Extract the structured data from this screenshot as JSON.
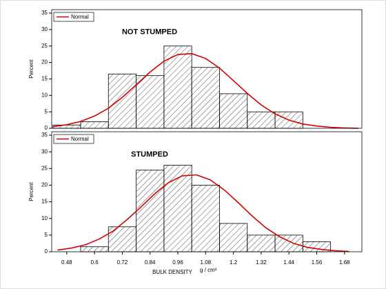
{
  "chart_data": [
    {
      "type": "histogram",
      "title": "NOT STUMPED",
      "ylabel": "Percent",
      "bins": [
        0.42,
        0.54,
        0.66,
        0.78,
        0.9,
        1.02,
        1.14,
        1.26,
        1.38,
        1.5
      ],
      "counts": [
        1,
        2,
        16.5,
        16,
        25,
        18.5,
        10.5,
        5,
        5
      ],
      "bar_color": "#000000",
      "xlim": [
        0.415,
        1.755
      ],
      "ylim": [
        0,
        35
      ],
      "yticks": [
        0,
        5,
        10,
        15,
        20,
        25,
        30,
        35
      ],
      "legend": "upper left",
      "series": [
        {
          "name": "Normal",
          "color": "#d40000",
          "x": [
            0.42,
            0.48,
            0.54,
            0.6,
            0.66,
            0.72,
            0.78,
            0.84,
            0.9,
            0.96,
            1.02,
            1.08,
            1.14,
            1.2,
            1.26,
            1.32,
            1.38,
            1.44,
            1.5,
            1.56,
            1.62,
            1.68,
            1.74
          ],
          "values": [
            0.5,
            1.1,
            2.1,
            3.7,
            6.1,
            9.4,
            13.2,
            17.1,
            20.4,
            22.4,
            22.7,
            21.2,
            18.3,
            14.5,
            10.6,
            7.1,
            4.4,
            2.5,
            1.3,
            0.7,
            0.3,
            0.1,
            0.0
          ]
        }
      ]
    },
    {
      "type": "histogram",
      "title": "STUMPED",
      "ylabel": "Percent",
      "xlabel": "BULK DENSITY",
      "xunit": "g / cm³",
      "bins": [
        0.54,
        0.66,
        0.78,
        0.9,
        1.02,
        1.14,
        1.26,
        1.38,
        1.5,
        1.62
      ],
      "counts": [
        1.5,
        7.5,
        24.5,
        26,
        20,
        8.5,
        5,
        5,
        3
      ],
      "bar_color": "#000000",
      "xlim": [
        0.415,
        1.755
      ],
      "xticks": [
        0.48,
        0.6,
        0.72,
        0.84,
        0.96,
        1.08,
        1.2,
        1.32,
        1.44,
        1.56,
        1.68
      ],
      "ylim": [
        0,
        35
      ],
      "yticks": [
        0,
        5,
        10,
        15,
        20,
        25,
        30,
        35
      ],
      "legend": "upper left",
      "series": [
        {
          "name": "Normal",
          "color": "#d40000",
          "x": [
            0.44,
            0.5,
            0.56,
            0.62,
            0.68,
            0.74,
            0.8,
            0.86,
            0.92,
            0.98,
            1.04,
            1.1,
            1.16,
            1.22,
            1.28,
            1.34,
            1.4,
            1.46,
            1.52,
            1.58,
            1.64,
            1.7
          ],
          "values": [
            0.5,
            1.1,
            2.1,
            3.8,
            6.2,
            9.6,
            13.4,
            17.4,
            20.8,
            22.8,
            23.1,
            21.6,
            18.6,
            14.8,
            10.8,
            7.2,
            4.5,
            2.5,
            1.3,
            0.7,
            0.3,
            0.1
          ]
        }
      ]
    }
  ]
}
